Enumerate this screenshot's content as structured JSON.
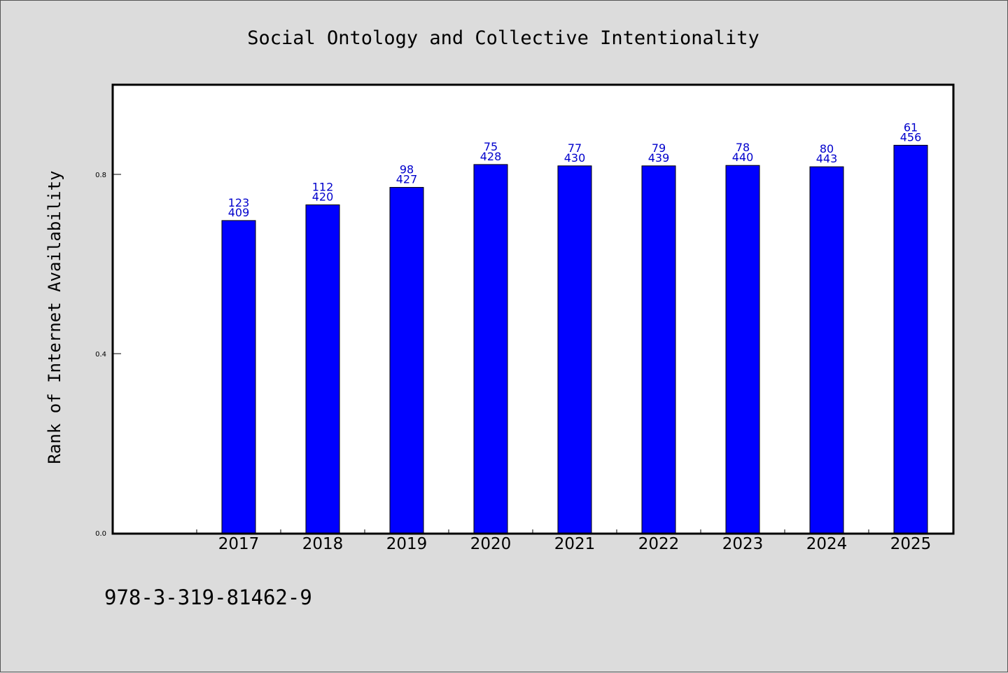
{
  "chart_data": {
    "type": "bar",
    "title": "Social Ontology and Collective Intentionality",
    "ylabel": "Rank of Internet Availability",
    "xlabel": "",
    "categories": [
      "2017",
      "2018",
      "2019",
      "2020",
      "2021",
      "2022",
      "2023",
      "2024",
      "2025"
    ],
    "values": [
      0.697,
      0.732,
      0.771,
      0.822,
      0.819,
      0.819,
      0.82,
      0.817,
      0.865
    ],
    "data_labels": [
      [
        "123",
        "409"
      ],
      [
        "112",
        "420"
      ],
      [
        "98",
        "427"
      ],
      [
        "75",
        "428"
      ],
      [
        "77",
        "430"
      ],
      [
        "79",
        "439"
      ],
      [
        "78",
        "440"
      ],
      [
        "80",
        "443"
      ],
      [
        "61",
        "456"
      ]
    ],
    "yticks": [
      "0.0",
      "0.4",
      "0.8"
    ],
    "ytick_values": [
      0.0,
      0.4,
      0.8
    ],
    "ylim": [
      0,
      1.0
    ],
    "grid": false,
    "legend": "none",
    "bar_color": "#0000ff",
    "label_color": "#0000cc",
    "background_color": "#dcdcdc",
    "plot_background_color": "#ffffff"
  },
  "footer": {
    "isbn": "978-3-319-81462-9"
  }
}
